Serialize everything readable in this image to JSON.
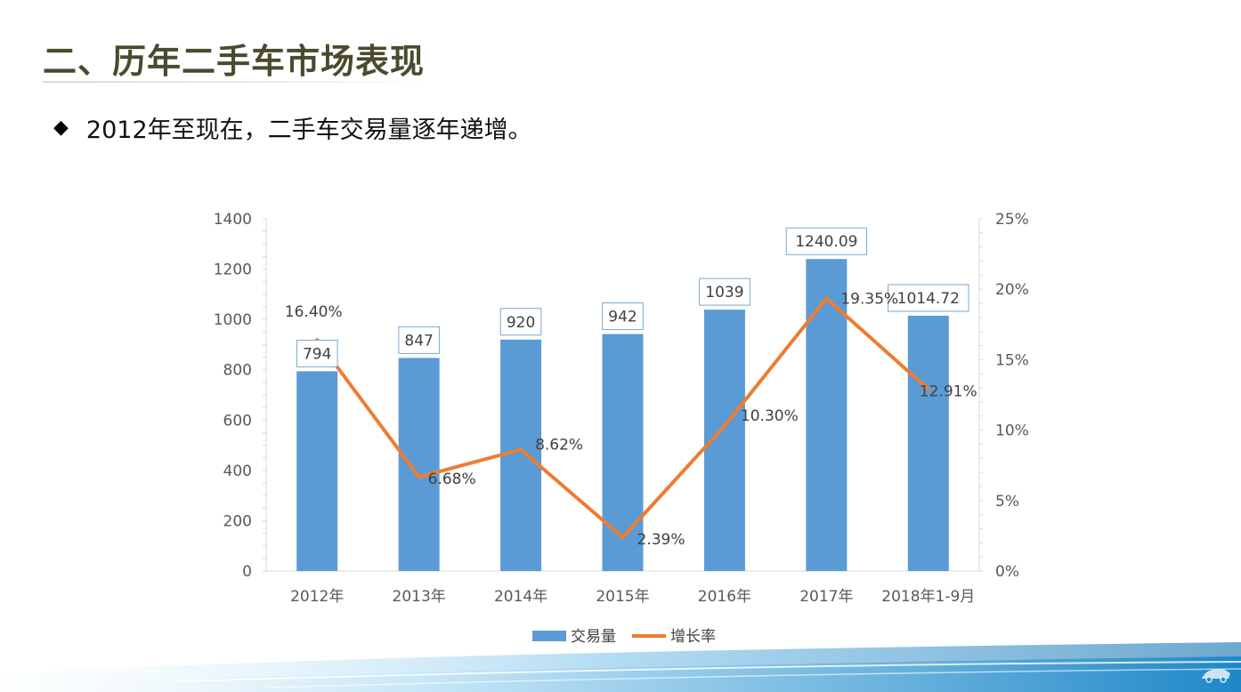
{
  "slide": {
    "title": "二、历年二手车市场表现",
    "bullet_symbol": "◆",
    "bullet_text": "2012年至现在，二手车交易量逐年递增。"
  },
  "colors": {
    "bar": "#5b9bd5",
    "line": "#ed7d31",
    "title": "#4a4a2e"
  },
  "chart_data": {
    "type": "bar",
    "categories": [
      "2012年",
      "2013年",
      "2014年",
      "2015年",
      "2016年",
      "2017年",
      "2018年1-9月"
    ],
    "series": [
      {
        "name": "交易量",
        "type": "bar",
        "axis": "left",
        "values": [
          794,
          847,
          920,
          942,
          1039,
          1240.09,
          1014.72
        ],
        "labels": [
          "794",
          "847",
          "920",
          "942",
          "1039",
          "1240.09",
          "1014.72"
        ]
      },
      {
        "name": "增长率",
        "type": "line",
        "axis": "right",
        "values": [
          16.4,
          6.68,
          8.62,
          2.39,
          10.3,
          19.35,
          12.91
        ],
        "labels": [
          "16.40%",
          "6.68%",
          "8.62%",
          "2.39%",
          "10.30%",
          "19.35%",
          "12.91%"
        ]
      }
    ],
    "y_left": {
      "min": 0,
      "max": 1400,
      "ticks": [
        "0",
        "200",
        "400",
        "600",
        "800",
        "1000",
        "1200",
        "1400"
      ]
    },
    "y_right": {
      "min": 0,
      "max": 25,
      "ticks": [
        "0%",
        "5%",
        "10%",
        "15%",
        "20%",
        "25%"
      ]
    },
    "legend": {
      "placement": "bottom",
      "entries": [
        "交易量",
        "增长率"
      ]
    },
    "grid": false
  },
  "footer": {
    "logo_icon": "car-logo-icon"
  }
}
